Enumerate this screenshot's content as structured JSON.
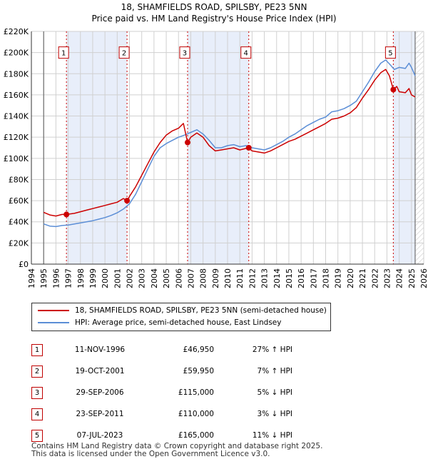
{
  "header": {
    "title_line1": "18, SHAMFIELDS ROAD, SPILSBY, PE23 5NN",
    "title_line2": "Price paid vs. HM Land Registry's House Price Index (HPI)"
  },
  "chart_data": {
    "type": "line",
    "xlim": [
      1994,
      2026
    ],
    "ylim": [
      0,
      220000
    ],
    "y_ticks": [
      0,
      20000,
      40000,
      60000,
      80000,
      100000,
      120000,
      140000,
      160000,
      180000,
      200000,
      220000
    ],
    "y_tick_labels": [
      "£0",
      "£20K",
      "£40K",
      "£60K",
      "£80K",
      "£100K",
      "£120K",
      "£140K",
      "£160K",
      "£180K",
      "£200K",
      "£220K"
    ],
    "x_ticks": [
      1994,
      1995,
      1996,
      1997,
      1998,
      1999,
      2000,
      2001,
      2002,
      2003,
      2004,
      2005,
      2006,
      2007,
      2008,
      2009,
      2010,
      2011,
      2012,
      2013,
      2014,
      2015,
      2016,
      2017,
      2018,
      2019,
      2020,
      2021,
      2022,
      2023,
      2024,
      2025,
      2026
    ],
    "x_tick_labels": [
      "1994",
      "1995",
      "1996",
      "1997",
      "1998",
      "1999",
      "2000",
      "2001",
      "2002",
      "2003",
      "2004",
      "2005",
      "2006",
      "2007",
      "2008",
      "2009",
      "2010",
      "2011",
      "2012",
      "2013",
      "2014",
      "2015",
      "2016",
      "2017",
      "2018",
      "2019",
      "2020",
      "2021",
      "2022",
      "2023",
      "2024",
      "2025",
      "2026"
    ],
    "data_start": 1995,
    "data_end": 2025.3,
    "series": [
      {
        "name": "18, SHAMFIELDS ROAD, SPILSBY, PE23 5NN (semi-detached house)",
        "color": "#cc0000",
        "points": [
          [
            1995.0,
            49000
          ],
          [
            1995.5,
            46500
          ],
          [
            1996.0,
            45500
          ],
          [
            1996.5,
            47000
          ],
          [
            1996.86,
            46950
          ],
          [
            1997.5,
            48000
          ],
          [
            1998.0,
            49500
          ],
          [
            1998.5,
            51000
          ],
          [
            1999.0,
            52500
          ],
          [
            1999.5,
            54000
          ],
          [
            2000.0,
            55500
          ],
          [
            2000.5,
            57000
          ],
          [
            2001.0,
            58500
          ],
          [
            2001.5,
            62000
          ],
          [
            2001.8,
            59950
          ],
          [
            2002.0,
            64000
          ],
          [
            2002.5,
            73000
          ],
          [
            2003.0,
            84000
          ],
          [
            2003.5,
            95000
          ],
          [
            2004.0,
            106000
          ],
          [
            2004.5,
            115000
          ],
          [
            2005.0,
            122000
          ],
          [
            2005.5,
            126000
          ],
          [
            2006.0,
            128500
          ],
          [
            2006.4,
            133000
          ],
          [
            2006.74,
            115000
          ],
          [
            2007.0,
            120000
          ],
          [
            2007.5,
            124000
          ],
          [
            2008.0,
            120000
          ],
          [
            2008.5,
            112000
          ],
          [
            2009.0,
            107000
          ],
          [
            2009.5,
            108000
          ],
          [
            2010.0,
            109000
          ],
          [
            2010.5,
            110000
          ],
          [
            2011.0,
            108000
          ],
          [
            2011.73,
            110000
          ],
          [
            2012.0,
            107000
          ],
          [
            2012.5,
            106000
          ],
          [
            2013.0,
            105000
          ],
          [
            2013.5,
            107000
          ],
          [
            2014.0,
            110000
          ],
          [
            2014.5,
            113000
          ],
          [
            2015.0,
            116000
          ],
          [
            2015.5,
            118000
          ],
          [
            2016.0,
            121000
          ],
          [
            2016.5,
            124000
          ],
          [
            2017.0,
            127000
          ],
          [
            2017.5,
            130000
          ],
          [
            2018.0,
            133000
          ],
          [
            2018.5,
            137000
          ],
          [
            2019.0,
            138000
          ],
          [
            2019.5,
            140000
          ],
          [
            2020.0,
            143000
          ],
          [
            2020.5,
            148000
          ],
          [
            2021.0,
            157000
          ],
          [
            2021.5,
            165000
          ],
          [
            2022.0,
            174000
          ],
          [
            2022.5,
            181000
          ],
          [
            2022.9,
            184000
          ],
          [
            2023.2,
            178000
          ],
          [
            2023.52,
            165000
          ],
          [
            2023.8,
            168000
          ],
          [
            2024.0,
            163000
          ],
          [
            2024.5,
            162000
          ],
          [
            2024.8,
            166000
          ],
          [
            2025.0,
            160000
          ],
          [
            2025.3,
            158000
          ]
        ]
      },
      {
        "name": "HPI: Average price, semi-detached house, East Lindsey",
        "color": "#5b8ed6",
        "points": [
          [
            1995.0,
            38000
          ],
          [
            1995.5,
            36000
          ],
          [
            1996.0,
            35500
          ],
          [
            1996.5,
            36500
          ],
          [
            1997.0,
            37000
          ],
          [
            1997.5,
            38000
          ],
          [
            1998.0,
            39000
          ],
          [
            1998.5,
            40000
          ],
          [
            1999.0,
            41000
          ],
          [
            1999.5,
            42500
          ],
          [
            2000.0,
            44000
          ],
          [
            2000.5,
            46000
          ],
          [
            2001.0,
            48500
          ],
          [
            2001.5,
            52000
          ],
          [
            2002.0,
            57000
          ],
          [
            2002.5,
            66000
          ],
          [
            2003.0,
            78000
          ],
          [
            2003.5,
            90000
          ],
          [
            2004.0,
            102000
          ],
          [
            2004.5,
            110000
          ],
          [
            2005.0,
            114000
          ],
          [
            2005.5,
            117000
          ],
          [
            2006.0,
            120000
          ],
          [
            2006.5,
            122000
          ],
          [
            2007.0,
            124500
          ],
          [
            2007.5,
            127000
          ],
          [
            2008.0,
            123000
          ],
          [
            2008.5,
            117000
          ],
          [
            2009.0,
            110000
          ],
          [
            2009.5,
            110000
          ],
          [
            2010.0,
            112000
          ],
          [
            2010.5,
            113000
          ],
          [
            2011.0,
            111000
          ],
          [
            2011.5,
            112000
          ],
          [
            2012.0,
            110000
          ],
          [
            2012.5,
            109000
          ],
          [
            2013.0,
            108000
          ],
          [
            2013.5,
            110000
          ],
          [
            2014.0,
            113000
          ],
          [
            2014.5,
            116000
          ],
          [
            2015.0,
            120000
          ],
          [
            2015.5,
            123000
          ],
          [
            2016.0,
            127000
          ],
          [
            2016.5,
            131000
          ],
          [
            2017.0,
            134000
          ],
          [
            2017.5,
            137000
          ],
          [
            2018.0,
            139000
          ],
          [
            2018.5,
            144000
          ],
          [
            2019.0,
            145000
          ],
          [
            2019.5,
            147000
          ],
          [
            2020.0,
            150000
          ],
          [
            2020.5,
            154000
          ],
          [
            2021.0,
            163000
          ],
          [
            2021.5,
            172000
          ],
          [
            2022.0,
            182000
          ],
          [
            2022.5,
            190000
          ],
          [
            2022.9,
            193000
          ],
          [
            2023.3,
            188000
          ],
          [
            2023.6,
            184000
          ],
          [
            2024.0,
            186000
          ],
          [
            2024.5,
            185000
          ],
          [
            2024.8,
            190000
          ],
          [
            2025.0,
            186000
          ],
          [
            2025.3,
            178000
          ]
        ]
      }
    ],
    "shaded_regions": [
      [
        1996.86,
        2001.8
      ],
      [
        2006.74,
        2011.73
      ],
      [
        2023.52,
        2025.3
      ]
    ],
    "sales": [
      {
        "num": "1",
        "x": 1996.86,
        "y": 46950
      },
      {
        "num": "2",
        "x": 2001.8,
        "y": 59950
      },
      {
        "num": "3",
        "x": 2006.74,
        "y": 115000
      },
      {
        "num": "4",
        "x": 2011.73,
        "y": 110000
      },
      {
        "num": "5",
        "x": 2023.52,
        "y": 165000
      }
    ],
    "marker_label_value": 200000,
    "grid": true,
    "legend_position": "bottom"
  },
  "legend": {
    "items": [
      {
        "label": "18, SHAMFIELDS ROAD, SPILSBY, PE23 5NN (semi-detached house)",
        "color": "#cc0000"
      },
      {
        "label": "HPI: Average price, semi-detached house, East Lindsey",
        "color": "#5b8ed6"
      }
    ]
  },
  "sales_table": [
    {
      "num": "1",
      "date": "11-NOV-1996",
      "price": "£46,950",
      "hpi": "27% ↑ HPI"
    },
    {
      "num": "2",
      "date": "19-OCT-2001",
      "price": "£59,950",
      "hpi": "7% ↑ HPI"
    },
    {
      "num": "3",
      "date": "29-SEP-2006",
      "price": "£115,000",
      "hpi": "5% ↓ HPI"
    },
    {
      "num": "4",
      "date": "23-SEP-2011",
      "price": "£110,000",
      "hpi": "3% ↓ HPI"
    },
    {
      "num": "5",
      "date": "07-JUL-2023",
      "price": "£165,000",
      "hpi": "11% ↓ HPI"
    }
  ],
  "footer": {
    "line1": "Contains HM Land Registry data © Crown copyright and database right 2025.",
    "line2": "This data is licensed under the Open Government Licence v3.0."
  },
  "colors": {
    "property": "#cc0000",
    "hpi": "#5b8ed6",
    "shade": "#e8eefa",
    "grid": "#d0d0d0",
    "marker_box": "#c00000"
  }
}
